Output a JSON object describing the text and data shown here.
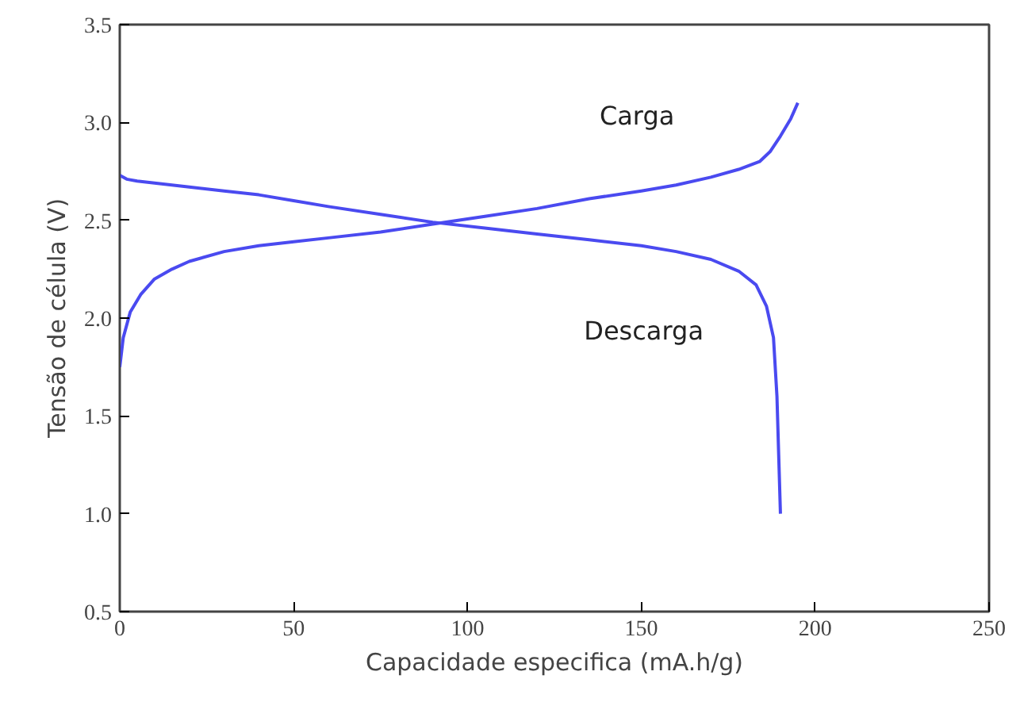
{
  "chart_data": {
    "type": "line",
    "xlabel": "Capacidade especifica (mA.h/g)",
    "ylabel": "Tensão de célula (V)",
    "xlim": [
      0,
      250
    ],
    "xticks": [
      0,
      50,
      100,
      150,
      200,
      250
    ],
    "ylim": [
      0.5,
      3.5
    ],
    "yticks": [
      0.5,
      {
        "value": 1.0,
        "label": "1.0"
      },
      1.5,
      {
        "value": 2.0,
        "label": "2.0"
      },
      2.5,
      {
        "value": 3.0,
        "label": "3.0"
      },
      3.5
    ],
    "grid": false,
    "legend": false,
    "marker": "none",
    "line_style": "solid",
    "series": [
      {
        "name": "Carga",
        "color": "#4a4af0",
        "x": [
          0,
          1,
          3,
          6,
          10,
          15,
          20,
          30,
          40,
          50,
          60,
          75,
          90,
          105,
          120,
          135,
          150,
          160,
          170,
          178,
          184,
          187,
          190,
          193,
          195
        ],
        "values": [
          1.75,
          1.9,
          2.03,
          2.12,
          2.2,
          2.25,
          2.29,
          2.34,
          2.37,
          2.39,
          2.41,
          2.44,
          2.48,
          2.52,
          2.56,
          2.61,
          2.65,
          2.68,
          2.72,
          2.76,
          2.8,
          2.85,
          2.93,
          3.02,
          3.1
        ]
      },
      {
        "name": "Descarga",
        "color": "#4a4af0",
        "x": [
          0,
          2,
          5,
          10,
          20,
          30,
          40,
          50,
          60,
          75,
          90,
          105,
          120,
          135,
          150,
          160,
          170,
          178,
          183,
          186,
          188,
          189,
          189.5,
          190
        ],
        "values": [
          2.73,
          2.71,
          2.7,
          2.69,
          2.67,
          2.65,
          2.63,
          2.6,
          2.57,
          2.53,
          2.49,
          2.46,
          2.43,
          2.4,
          2.37,
          2.34,
          2.3,
          2.24,
          2.17,
          2.06,
          1.9,
          1.6,
          1.3,
          1.0
        ]
      }
    ]
  }
}
